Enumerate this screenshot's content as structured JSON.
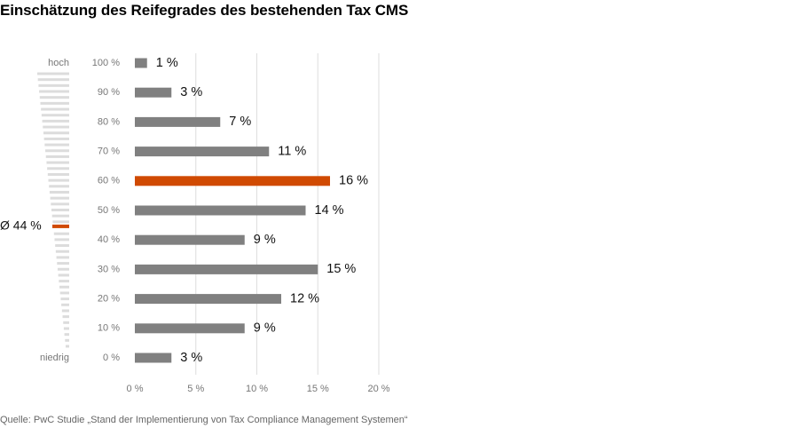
{
  "title": "Einschätzung des Reifegrades des bestehenden Tax CMS",
  "source": "Quelle: PwC Studie „Stand der Implementierung von Tax Compliance Management Systemen“",
  "colors": {
    "bar": "#808080",
    "highlight": "#d04a02",
    "grid": "#dedede",
    "scale": "#dcdcdc"
  },
  "chart_data": {
    "type": "bar",
    "orientation": "horizontal",
    "categories": [
      "100 %",
      "90 %",
      "80 %",
      "70 %",
      "60 %",
      "50 %",
      "40 %",
      "30 %",
      "20 %",
      "10 %",
      "0 %"
    ],
    "values": [
      1,
      3,
      7,
      11,
      16,
      14,
      9,
      15,
      12,
      9,
      3
    ],
    "value_labels": [
      "1 %",
      "3 %",
      "7 %",
      "11 %",
      "16 %",
      "14 %",
      "9 %",
      "15 %",
      "12 %",
      "9 %",
      "3 %"
    ],
    "highlight_category": "60 %",
    "x_ticks": [
      0,
      5,
      10,
      15,
      20
    ],
    "x_tick_labels": [
      "0 %",
      "5 %",
      "10 %",
      "15 %",
      "20 %"
    ],
    "xlim": [
      0,
      20
    ],
    "grid": true,
    "scale": {
      "top_label": "hoch",
      "bottom_label": "niedrig",
      "average_label": "Ø 44 %",
      "average_value": 44
    }
  }
}
